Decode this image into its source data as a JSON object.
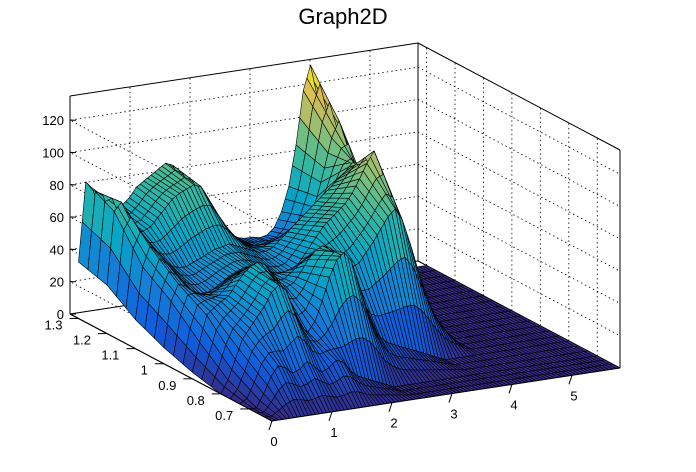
{
  "chart_data": {
    "type": "surface",
    "title": "Graph2D",
    "x_ticks": [
      "0",
      "1",
      "2",
      "3",
      "4",
      "5"
    ],
    "y_ticks": [
      "0.7",
      "0.8",
      "0.9",
      "1",
      "1.1",
      "1.2",
      "1.3"
    ],
    "z_ticks": [
      "0",
      "20",
      "40",
      "60",
      "80",
      "100",
      "120"
    ],
    "xlim": [
      0,
      5.8
    ],
    "ylim": [
      0.62,
      1.33
    ],
    "zlim": [
      0,
      135
    ],
    "grid": true,
    "palette": "viridis-like",
    "surface_rows": [
      {
        "y": 1.3,
        "values": [
          35,
          84,
          78,
          64,
          62,
          64,
          66,
          70,
          76,
          79,
          82,
          85,
          88,
          86,
          77,
          66,
          56,
          50,
          46,
          43,
          40,
          38,
          35,
          34,
          34,
          33,
          34,
          38,
          47,
          62,
          87,
          120,
          135,
          113,
          84,
          42,
          0,
          0,
          0,
          0,
          0,
          0,
          0,
          0,
          0,
          0,
          0,
          0,
          0
        ]
      },
      {
        "y": 1.2,
        "values": [
          30,
          75,
          80,
          70,
          60,
          60,
          62,
          67,
          72,
          77,
          80,
          82,
          84,
          82,
          74,
          64,
          55,
          49,
          45,
          42,
          40,
          38,
          36,
          36,
          36,
          37,
          39,
          44,
          53,
          65,
          82,
          100,
          110,
          96,
          72,
          34,
          0,
          0,
          0,
          0,
          0,
          0,
          0,
          0,
          0,
          0,
          0,
          0,
          0
        ]
      },
      {
        "y": 1.1,
        "values": [
          18,
          50,
          62,
          58,
          52,
          48,
          46,
          46,
          48,
          50,
          52,
          54,
          55,
          56,
          54,
          52,
          50,
          48,
          48,
          50,
          54,
          58,
          62,
          66,
          70,
          74,
          78,
          82,
          86,
          90,
          95,
          90,
          76,
          58,
          42,
          18,
          0,
          0,
          0,
          0,
          0,
          0,
          0,
          0,
          0,
          0,
          0,
          0,
          0
        ]
      },
      {
        "y": 1.0,
        "values": [
          10,
          38,
          48,
          46,
          42,
          40,
          40,
          42,
          45,
          48,
          50,
          52,
          52,
          50,
          48,
          46,
          44,
          44,
          46,
          52,
          58,
          64,
          70,
          74,
          78,
          82,
          88,
          96,
          105,
          112,
          100,
          84,
          62,
          42,
          28,
          10,
          0,
          0,
          0,
          0,
          0,
          0,
          0,
          0,
          0,
          0,
          0,
          0,
          0
        ]
      },
      {
        "y": 0.9,
        "values": [
          4,
          22,
          38,
          42,
          45,
          48,
          54,
          60,
          64,
          66,
          64,
          58,
          52,
          48,
          50,
          56,
          63,
          68,
          70,
          68,
          64,
          58,
          54,
          56,
          62,
          68,
          75,
          82,
          86,
          78,
          64,
          48,
          32,
          20,
          12,
          4,
          0,
          0,
          0,
          0,
          0,
          0,
          0,
          0,
          0,
          0,
          0,
          0,
          0
        ]
      },
      {
        "y": 0.8,
        "values": [
          0,
          8,
          20,
          32,
          38,
          44,
          50,
          58,
          62,
          58,
          46,
          34,
          30,
          36,
          48,
          62,
          72,
          76,
          70,
          56,
          40,
          28,
          20,
          16,
          14,
          12,
          10,
          8,
          6,
          4,
          2,
          0,
          0,
          0,
          0,
          0,
          0,
          0,
          0,
          0,
          0,
          0,
          0,
          0,
          0,
          0,
          0,
          0,
          0
        ]
      },
      {
        "y": 0.7,
        "values": [
          0,
          0,
          8,
          18,
          24,
          22,
          18,
          20,
          24,
          20,
          16,
          18,
          22,
          20,
          14,
          10,
          8,
          6,
          4,
          2,
          0,
          0,
          0,
          0,
          0,
          0,
          0,
          0,
          0,
          0,
          0,
          0,
          0,
          0,
          0,
          0,
          0,
          0,
          0,
          0,
          0,
          0,
          0,
          0,
          0,
          0,
          0,
          0,
          0
        ]
      },
      {
        "y": 0.62,
        "values": [
          0,
          0,
          0,
          0,
          0,
          0,
          0,
          0,
          0,
          0,
          0,
          0,
          0,
          0,
          0,
          0,
          0,
          0,
          0,
          0,
          0,
          0,
          0,
          0,
          0,
          0,
          0,
          0,
          0,
          0,
          0,
          0,
          0,
          0,
          0,
          0,
          0,
          0,
          0,
          0,
          0,
          0,
          0,
          0,
          0,
          0,
          0,
          0,
          0
        ]
      }
    ]
  }
}
